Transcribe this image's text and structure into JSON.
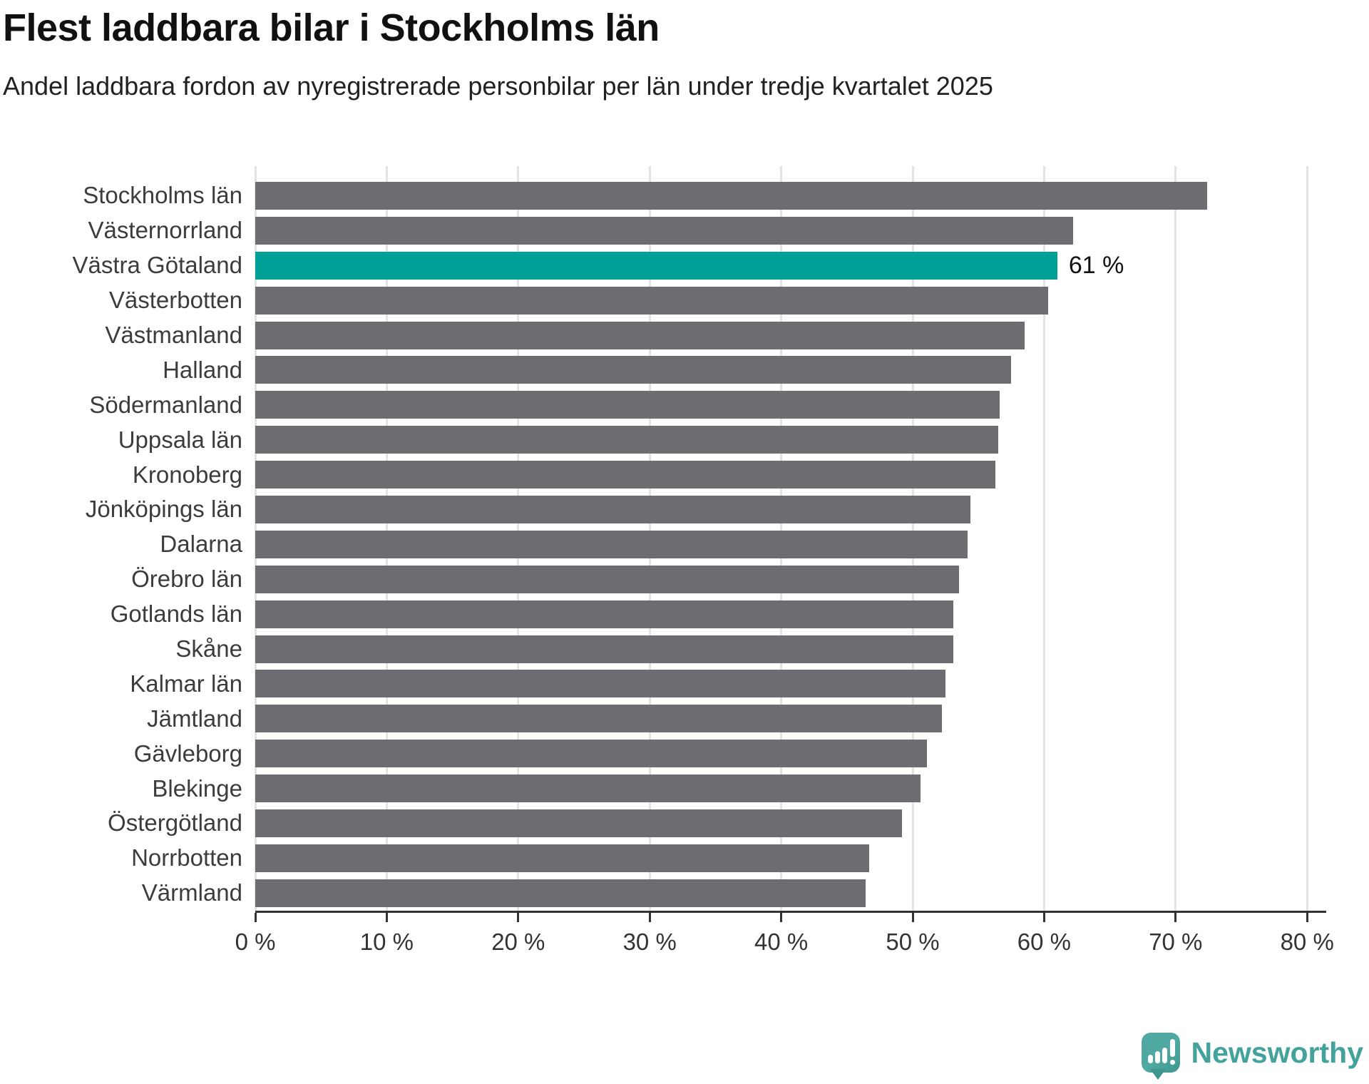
{
  "header": {
    "title": "Flest laddbara bilar i Stockholms län",
    "subtitle": "Andel laddbara fordon av nyregistrerade personbilar per län under tredje kvartalet 2025"
  },
  "chart_data": {
    "type": "bar",
    "orientation": "horizontal",
    "title": "Flest laddbara bilar i Stockholms län",
    "subtitle": "Andel laddbara fordon av nyregistrerade personbilar per län under tredje kvartalet 2025",
    "unit": "%",
    "categories": [
      "Stockholms län",
      "Västernorrland",
      "Västra Götaland",
      "Västerbotten",
      "Västmanland",
      "Halland",
      "Södermanland",
      "Uppsala län",
      "Kronoberg",
      "Jönköpings län",
      "Dalarna",
      "Örebro län",
      "Gotlands län",
      "Skåne",
      "Kalmar län",
      "Jämtland",
      "Gävleborg",
      "Blekinge",
      "Östergötland",
      "Norrbotten",
      "Värmland"
    ],
    "values": [
      72.4,
      62.2,
      61.0,
      60.3,
      58.5,
      57.5,
      56.6,
      56.5,
      56.3,
      54.4,
      54.2,
      53.5,
      53.1,
      53.1,
      52.5,
      52.2,
      51.1,
      50.6,
      49.2,
      46.7,
      46.4
    ],
    "highlight": {
      "category": "Västra Götaland",
      "index": 2,
      "label": "61 %"
    },
    "x_ticks": [
      "0 %",
      "10 %",
      "20 %",
      "30 %",
      "40 %",
      "50 %",
      "60 %",
      "70 %",
      "80 %"
    ],
    "xlim": [
      0,
      80
    ],
    "xlabel": "",
    "ylabel": "",
    "grid": "vertical",
    "legend": "none",
    "bar_color": "#6c6c71",
    "highlight_color": "#00a096",
    "axis_color": "#333333",
    "gridline_color": "#e3e3e3"
  },
  "branding": {
    "logo_text": "Newsworthy",
    "logo_color": "#43a29b",
    "logo_icon": "speech-bubble-bar-chart-icon"
  }
}
